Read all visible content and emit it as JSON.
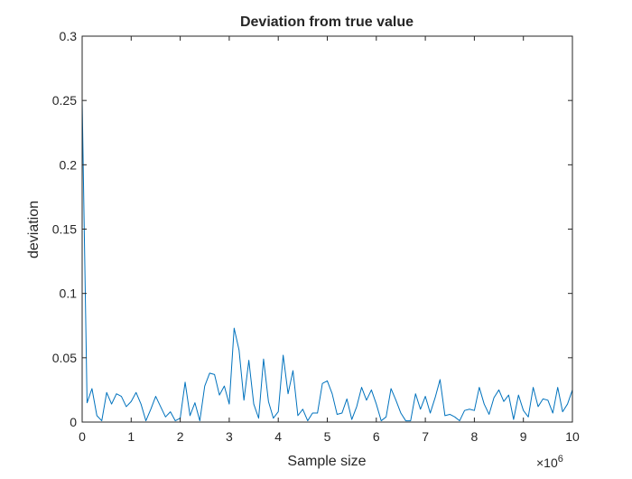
{
  "chart_data": {
    "type": "line",
    "title": "Deviation from true value",
    "xlabel": "Sample size",
    "ylabel": "deviation",
    "xlim": [
      0,
      10000000
    ],
    "ylim": [
      0,
      0.3
    ],
    "x_tick_values": [
      0,
      1000000,
      2000000,
      3000000,
      4000000,
      5000000,
      6000000,
      7000000,
      8000000,
      9000000,
      10000000
    ],
    "x_tick_labels": [
      "0",
      "1",
      "2",
      "3",
      "4",
      "5",
      "6",
      "7",
      "8",
      "9",
      "10"
    ],
    "x_exponent_base": "×10",
    "x_exponent_power": "6",
    "y_tick_values": [
      0,
      0.05,
      0.1,
      0.15,
      0.2,
      0.25,
      0.3
    ],
    "y_tick_labels": [
      "0",
      "0.05",
      "0.1",
      "0.15",
      "0.2",
      "0.25",
      "0.3"
    ],
    "grid": false,
    "line_color": "#0072bd",
    "series": [
      {
        "x": [
          1,
          100000,
          200000,
          300000,
          400000,
          500000,
          600000,
          700000,
          800000,
          900000,
          1000000,
          1100000,
          1200000,
          1300000,
          1400000,
          1500000,
          1600000,
          1700000,
          1800000,
          1900000,
          2000000,
          2100000,
          2200000,
          2300000,
          2400000,
          2500000,
          2600000,
          2700000,
          2800000,
          2900000,
          3000000,
          3100000,
          3200000,
          3300000,
          3400000,
          3500000,
          3600000,
          3700000,
          3800000,
          3900000,
          4000000,
          4100000,
          4200000,
          4300000,
          4400000,
          4500000,
          4600000,
          4700000,
          4800000,
          4900000,
          5000000,
          5100000,
          5200000,
          5300000,
          5400000,
          5500000,
          5600000,
          5700000,
          5800000,
          5900000,
          6000000,
          6100000,
          6200000,
          6300000,
          6400000,
          6500000,
          6600000,
          6700000,
          6800000,
          6900000,
          7000000,
          7100000,
          7200000,
          7300000,
          7400000,
          7500000,
          7600000,
          7700000,
          7800000,
          7900000,
          8000000,
          8100000,
          8200000,
          8300000,
          8400000,
          8500000,
          8600000,
          8700000,
          8800000,
          8900000,
          9000000,
          9100000,
          9200000,
          9300000,
          9400000,
          9500000,
          9600000,
          9700000,
          9800000,
          9900000,
          10000000
        ],
        "y": [
          0.25,
          0.015,
          0.026,
          0.005,
          0.001,
          0.023,
          0.014,
          0.022,
          0.02,
          0.012,
          0.016,
          0.023,
          0.014,
          0.001,
          0.01,
          0.02,
          0.012,
          0.004,
          0.008,
          0.001,
          0.003,
          0.031,
          0.005,
          0.015,
          0.001,
          0.028,
          0.038,
          0.037,
          0.021,
          0.028,
          0.014,
          0.073,
          0.056,
          0.017,
          0.048,
          0.014,
          0.003,
          0.049,
          0.016,
          0.003,
          0.008,
          0.052,
          0.022,
          0.04,
          0.005,
          0.01,
          0.001,
          0.007,
          0.007,
          0.03,
          0.032,
          0.022,
          0.006,
          0.007,
          0.018,
          0.002,
          0.012,
          0.027,
          0.017,
          0.025,
          0.014,
          0.001,
          0.004,
          0.026,
          0.017,
          0.007,
          0.001,
          0.001,
          0.022,
          0.01,
          0.02,
          0.007,
          0.019,
          0.033,
          0.005,
          0.006,
          0.004,
          0.001,
          0.009,
          0.01,
          0.009,
          0.027,
          0.014,
          0.006,
          0.019,
          0.025,
          0.016,
          0.021,
          0.002,
          0.021,
          0.009,
          0.004,
          0.027,
          0.012,
          0.018,
          0.017,
          0.007,
          0.027,
          0.008,
          0.014,
          0.025
        ]
      }
    ]
  }
}
